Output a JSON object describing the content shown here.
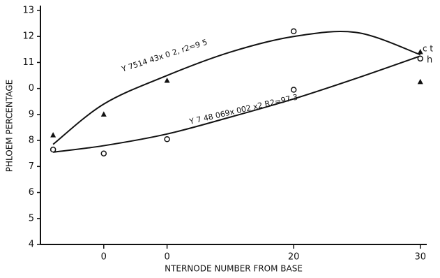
{
  "chart_data": {
    "type": "scatter",
    "xlabel": "NTERNODE NUMBER FROM BASE",
    "ylabel": "PHLOEM PERCENTAGE",
    "xlim": [
      0,
      31.5
    ],
    "xticks": [
      {
        "value": 5,
        "label": "0"
      },
      {
        "value": 10,
        "label": "0"
      },
      20,
      30
    ],
    "ylim": [
      4,
      13
    ],
    "yticks": [
      4,
      5,
      6,
      7,
      8,
      9,
      {
        "value": 10,
        "label": "0"
      },
      11,
      12,
      13
    ],
    "color": "#111111",
    "series": [
      {
        "marker": "triangle",
        "x": [
          1,
          5,
          10,
          30,
          30
        ],
        "values": [
          8.2,
          9.0,
          10.3,
          10.25,
          11.4
        ]
      },
      {
        "marker": "circle",
        "x": [
          1,
          5,
          10,
          20,
          20,
          30
        ],
        "values": [
          7.65,
          7.5,
          8.05,
          9.95,
          12.2,
          11.15
        ]
      }
    ],
    "fits": [
      {
        "x": [
          1,
          5,
          10,
          15,
          20,
          25,
          30
        ],
        "values": [
          7.85,
          9.4,
          10.5,
          11.4,
          12.0,
          12.15,
          11.3
        ]
      },
      {
        "x": [
          1,
          5,
          10,
          15,
          20,
          25,
          30
        ],
        "values": [
          7.55,
          7.8,
          8.25,
          8.9,
          9.6,
          10.4,
          11.25
        ]
      }
    ],
    "annotations": [
      "Y 7514 43x 0 2, r2=9 5",
      "Y 7 48 069x 002 x2 R2=97 3",
      "c t",
      "h"
    ]
  }
}
